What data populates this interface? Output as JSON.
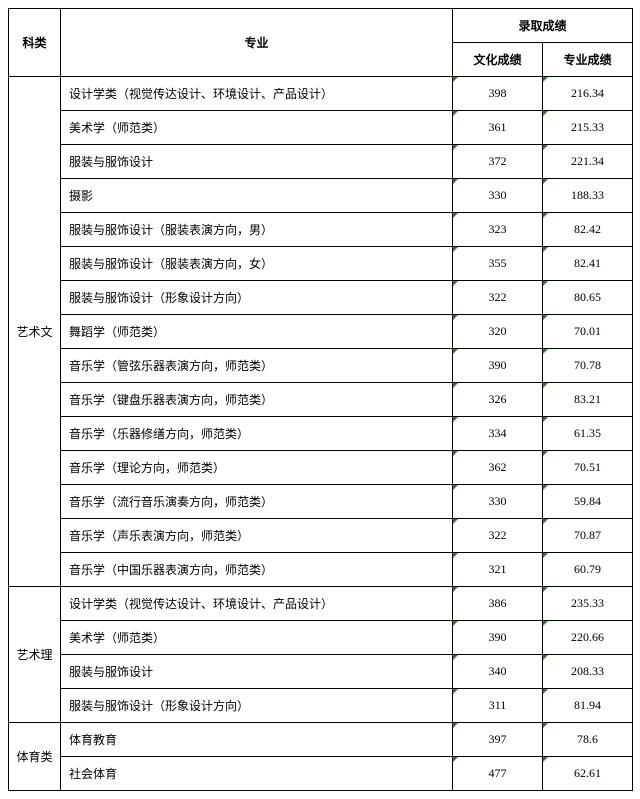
{
  "header": {
    "category": "科类",
    "major": "专业",
    "scores_group": "录取成绩",
    "score_culture": "文化成绩",
    "score_pro": "专业成绩"
  },
  "groups": [
    {
      "category": "艺术文",
      "rows": [
        {
          "major": "设计学类（视觉传达设计、环境设计、产品设计）",
          "culture": "398",
          "pro": "216.34"
        },
        {
          "major": "美术学（师范类）",
          "culture": "361",
          "pro": "215.33"
        },
        {
          "major": "服装与服饰设计",
          "culture": "372",
          "pro": "221.34"
        },
        {
          "major": "摄影",
          "culture": "330",
          "pro": "188.33"
        },
        {
          "major": "服装与服饰设计（服装表演方向，男）",
          "culture": "323",
          "pro": "82.42"
        },
        {
          "major": "服装与服饰设计（服装表演方向，女）",
          "culture": "355",
          "pro": "82.41"
        },
        {
          "major": "服装与服饰设计（形象设计方向）",
          "culture": "322",
          "pro": "80.65"
        },
        {
          "major": "舞蹈学（师范类）",
          "culture": "320",
          "pro": "70.01"
        },
        {
          "major": "音乐学（管弦乐器表演方向，师范类）",
          "culture": "390",
          "pro": "70.78"
        },
        {
          "major": "音乐学（键盘乐器表演方向，师范类）",
          "culture": "326",
          "pro": "83.21"
        },
        {
          "major": "音乐学（乐器修缮方向，师范类）",
          "culture": "334",
          "pro": "61.35"
        },
        {
          "major": "音乐学（理论方向，师范类）",
          "culture": "362",
          "pro": "70.51"
        },
        {
          "major": "音乐学（流行音乐演奏方向，师范类）",
          "culture": "330",
          "pro": "59.84"
        },
        {
          "major": "音乐学（声乐表演方向，师范类）",
          "culture": "322",
          "pro": "70.87"
        },
        {
          "major": "音乐学（中国乐器表演方向，师范类）",
          "culture": "321",
          "pro": "60.79"
        }
      ]
    },
    {
      "category": "艺术理",
      "rows": [
        {
          "major": "设计学类（视觉传达设计、环境设计、产品设计）",
          "culture": "386",
          "pro": "235.33"
        },
        {
          "major": "美术学（师范类）",
          "culture": "390",
          "pro": "220.66"
        },
        {
          "major": "服装与服饰设计",
          "culture": "340",
          "pro": "208.33"
        },
        {
          "major": "服装与服饰设计（形象设计方向）",
          "culture": "311",
          "pro": "81.94"
        }
      ]
    },
    {
      "category": "体育类",
      "rows": [
        {
          "major": "体育教育",
          "culture": "397",
          "pro": "78.6"
        },
        {
          "major": "社会体育",
          "culture": "477",
          "pro": "62.61"
        }
      ]
    }
  ]
}
